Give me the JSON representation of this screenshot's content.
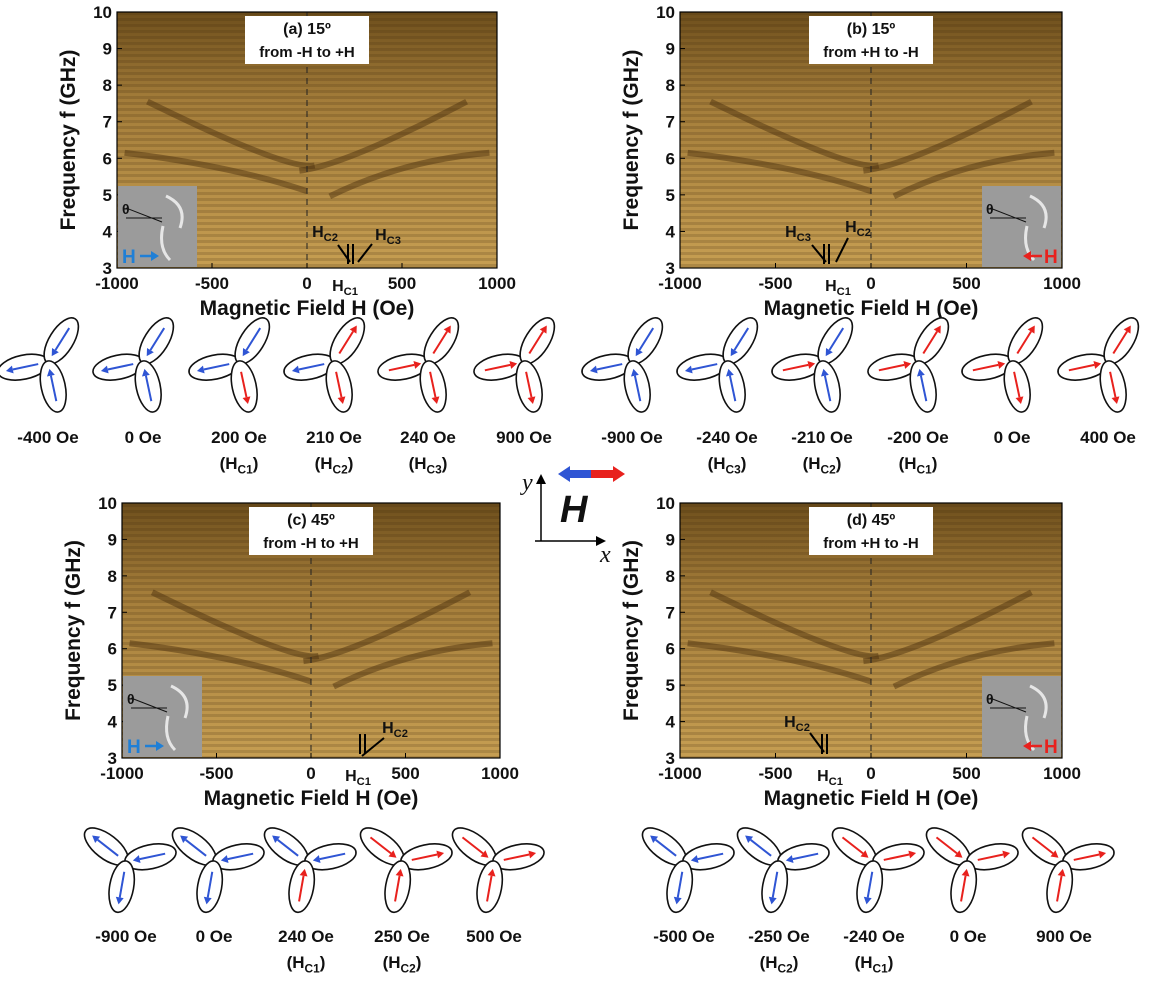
{
  "colors": {
    "minus": "#2f55d4",
    "plus": "#e8211d"
  },
  "panels": [
    {
      "title": [
        "(a) 15º",
        "from -H to +H"
      ],
      "xlabel": "Magnetic Field H (Oe)",
      "ylabel": "Frequency f (GHz)",
      "xlim": [
        -1000,
        1000
      ],
      "xticks": [
        -1000,
        -500,
        0,
        500,
        1000
      ],
      "ylim": [
        3,
        10
      ],
      "yticks": [
        3,
        4,
        5,
        6,
        7,
        8,
        9,
        10
      ],
      "inset": {
        "theta": "θ",
        "field": "H",
        "color": "#1f7fd6"
      },
      "markers": [
        [
          "H",
          "C2"
        ],
        [
          "H",
          "C3"
        ],
        [
          "H",
          "C1"
        ]
      ]
    },
    {
      "title": [
        "(b) 15º",
        "from +H to -H"
      ],
      "xlabel": "Magnetic Field H (Oe)",
      "ylabel": "Frequency f (GHz)",
      "xlim": [
        -1000,
        1000
      ],
      "xticks": [
        -1000,
        -500,
        0,
        500,
        1000
      ],
      "ylim": [
        3,
        10
      ],
      "yticks": [
        3,
        4,
        5,
        6,
        7,
        8,
        9,
        10
      ],
      "inset": {
        "theta": "θ",
        "field": "H",
        "color": "#e8211d"
      },
      "markers": [
        [
          "H",
          "C3"
        ],
        [
          "H",
          "C2"
        ],
        [
          "H",
          "C1"
        ]
      ]
    },
    {
      "title": [
        "(c) 45º",
        "from -H to +H"
      ],
      "xlabel": "Magnetic Field H (Oe)",
      "ylabel": "Frequency f (GHz)",
      "xlim": [
        -1000,
        1000
      ],
      "xticks": [
        -1000,
        -500,
        0,
        500,
        1000
      ],
      "ylim": [
        3,
        10
      ],
      "yticks": [
        3,
        4,
        5,
        6,
        7,
        8,
        9,
        10
      ],
      "inset": {
        "theta": "θ",
        "field": "H",
        "color": "#1f7fd6"
      },
      "markers": [
        [
          "H",
          "C2"
        ],
        [
          "H",
          "C1"
        ]
      ]
    },
    {
      "title": [
        "(d) 45º",
        "from +H to -H"
      ],
      "xlabel": "Magnetic Field H (Oe)",
      "ylabel": "Frequency f (GHz)",
      "xlim": [
        -1000,
        1000
      ],
      "xticks": [
        -1000,
        -500,
        0,
        500,
        1000
      ],
      "ylim": [
        3,
        10
      ],
      "yticks": [
        3,
        4,
        5,
        6,
        7,
        8,
        9,
        10
      ],
      "inset": {
        "theta": "θ",
        "field": "H",
        "color": "#e8211d"
      },
      "markers": [
        [
          "H",
          "C2"
        ],
        [
          "H",
          "C1"
        ]
      ]
    }
  ],
  "state_rows": [
    [
      {
        "field": "-400 Oe",
        "arrows": [
          "#2f55d4",
          "#2f55d4",
          "#2f55d4"
        ]
      },
      {
        "field": "0 Oe",
        "arrows": [
          "#2f55d4",
          "#2f55d4",
          "#2f55d4"
        ]
      },
      {
        "field": "200 Oe",
        "note": [
          "(H",
          "C1",
          ")"
        ],
        "arrows": [
          "#2f55d4",
          "#2f55d4",
          "#e8211d"
        ]
      },
      {
        "field": "210 Oe",
        "note": [
          "(H",
          "C2",
          ")"
        ],
        "arrows": [
          "#2f55d4",
          "#e8211d",
          "#e8211d"
        ]
      },
      {
        "field": "240 Oe",
        "note": [
          "(H",
          "C3",
          ")"
        ],
        "arrows": [
          "#e8211d",
          "#e8211d",
          "#e8211d"
        ]
      },
      {
        "field": "900 Oe",
        "arrows": [
          "#e8211d",
          "#e8211d",
          "#e8211d"
        ]
      },
      {
        "field": "-900 Oe",
        "arrows": [
          "#2f55d4",
          "#2f55d4",
          "#2f55d4"
        ]
      },
      {
        "field": "-240 Oe",
        "note": [
          "(H",
          "C3",
          ")"
        ],
        "arrows": [
          "#2f55d4",
          "#2f55d4",
          "#2f55d4"
        ]
      },
      {
        "field": "-210 Oe",
        "note": [
          "(H",
          "C2",
          ")"
        ],
        "arrows": [
          "#e8211d",
          "#2f55d4",
          "#2f55d4"
        ]
      },
      {
        "field": "-200 Oe",
        "note": [
          "(H",
          "C1",
          ")"
        ],
        "arrows": [
          "#e8211d",
          "#e8211d",
          "#2f55d4"
        ]
      },
      {
        "field": "0 Oe",
        "arrows": [
          "#e8211d",
          "#e8211d",
          "#e8211d"
        ]
      },
      {
        "field": "400 Oe",
        "arrows": [
          "#e8211d",
          "#e8211d",
          "#e8211d"
        ]
      }
    ],
    [
      {
        "field": "-900 Oe",
        "arrows": [
          "#2f55d4",
          "#2f55d4",
          "#2f55d4"
        ]
      },
      {
        "field": "0 Oe",
        "arrows": [
          "#2f55d4",
          "#2f55d4",
          "#2f55d4"
        ]
      },
      {
        "field": "240 Oe",
        "note": [
          "(H",
          "C1",
          ")"
        ],
        "arrows": [
          "#2f55d4",
          "#2f55d4",
          "#e8211d"
        ]
      },
      {
        "field": "250 Oe",
        "note": [
          "(H",
          "C2",
          ")"
        ],
        "arrows": [
          "#e8211d",
          "#e8211d",
          "#e8211d"
        ]
      },
      {
        "field": "500 Oe",
        "arrows": [
          "#e8211d",
          "#e8211d",
          "#e8211d"
        ]
      }
    ],
    [
      {
        "field": "-500 Oe",
        "arrows": [
          "#2f55d4",
          "#2f55d4",
          "#2f55d4"
        ]
      },
      {
        "field": "-250 Oe",
        "note": [
          "(H",
          "C2",
          ")"
        ],
        "arrows": [
          "#2f55d4",
          "#2f55d4",
          "#2f55d4"
        ]
      },
      {
        "field": "-240 Oe",
        "note": [
          "(H",
          "C1",
          ")"
        ],
        "arrows": [
          "#e8211d",
          "#e8211d",
          "#2f55d4"
        ]
      },
      {
        "field": "0 Oe",
        "arrows": [
          "#e8211d",
          "#e8211d",
          "#e8211d"
        ]
      },
      {
        "field": "900 Oe",
        "arrows": [
          "#e8211d",
          "#e8211d",
          "#e8211d"
        ]
      }
    ]
  ],
  "axes_key": {
    "y": "y",
    "x": "x",
    "field": "H"
  }
}
